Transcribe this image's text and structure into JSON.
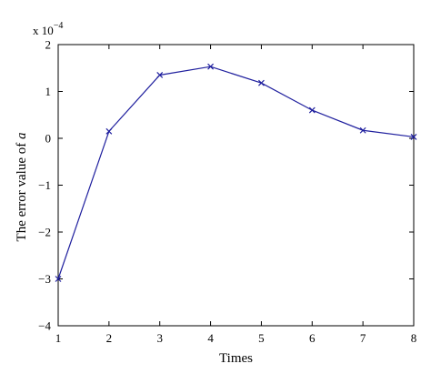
{
  "chart_data": {
    "type": "line",
    "xlabel": "Times",
    "ylabel_prefix": "The error value of ",
    "ylabel_var": "a",
    "x": [
      1,
      2,
      3,
      4,
      5,
      6,
      7,
      8
    ],
    "series": [
      {
        "values": [
          -3.0,
          0.15,
          1.35,
          1.53,
          1.18,
          0.6,
          0.17,
          0.03
        ],
        "color": "#1f1f9e",
        "marker": "x"
      }
    ],
    "xlim": [
      1,
      8
    ],
    "ylim": [
      -4,
      2
    ],
    "xticks": [
      "1",
      "2",
      "3",
      "4",
      "5",
      "6",
      "7",
      "8"
    ],
    "yticks": [
      "−4",
      "−3",
      "−2",
      "−1",
      "0",
      "1",
      "2"
    ],
    "ytick_values": [
      -4,
      -3,
      -2,
      -1,
      0,
      1,
      2
    ],
    "yscale_base": "x 10",
    "yscale_exp": "−4",
    "grid": false
  }
}
